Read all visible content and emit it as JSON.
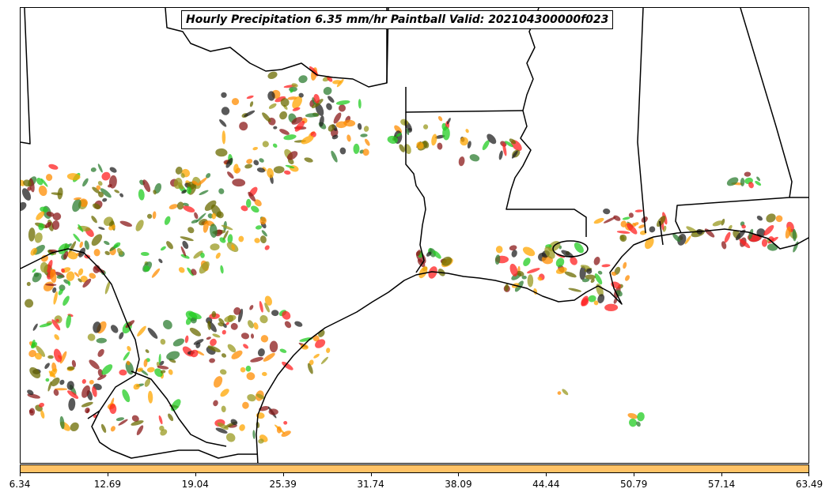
{
  "title": "Hourly Precipitation 6.35 mm/hr Paintball Valid: 202104300000f023",
  "colorbar": {
    "color": "#ffc266",
    "ticks": [
      "6.34",
      "12.69",
      "19.04",
      "25.39",
      "31.74",
      "38.09",
      "44.44",
      "50.79",
      "57.14",
      "63.49"
    ]
  },
  "palette": {
    "dark_red": "#8b1a1a",
    "red": "#ff2020",
    "green": "#22cc22",
    "dark_green": "#2e7d32",
    "orange": "#ff8c00",
    "light_orange": "#ffa500",
    "olive": "#9a9a20",
    "dark_olive": "#6b6b00",
    "black": "#222222",
    "boundary": "#000000"
  }
}
